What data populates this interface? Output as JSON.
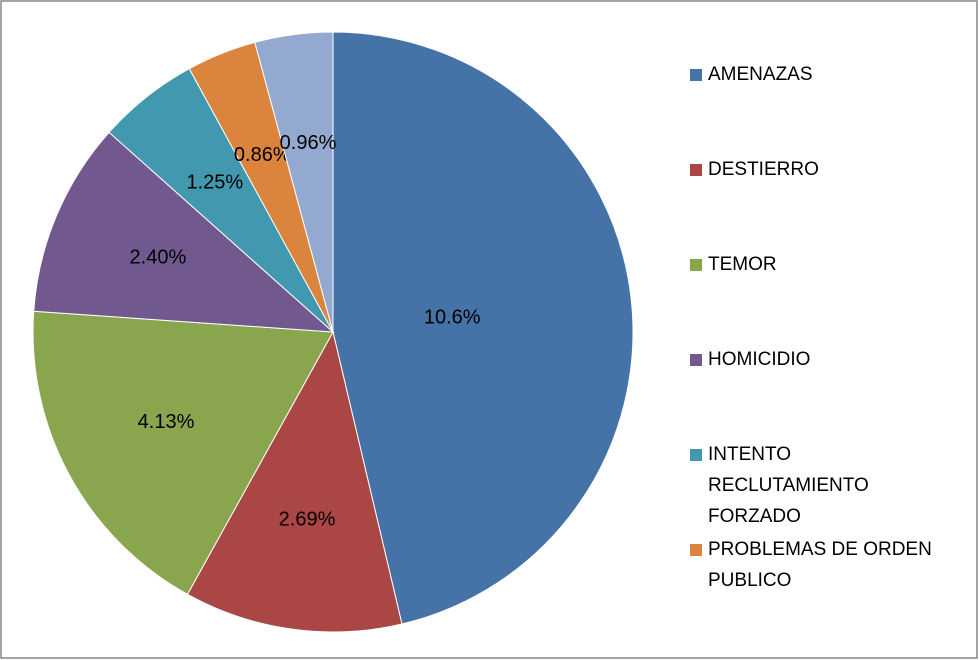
{
  "chart_data": {
    "type": "pie",
    "categories": [
      "AMENAZAS",
      "DESTIERRO",
      "TEMOR",
      "HOMICIDIO",
      "INTENTO RECLUTAMIENTO FORZADO",
      "PROBLEMAS DE ORDEN PUBLICO",
      null
    ],
    "values": [
      10.6,
      2.69,
      4.13,
      2.4,
      1.25,
      0.86,
      0.96
    ],
    "value_labels": [
      "10.6%",
      "2.69%",
      "4.13%",
      "2.40%",
      "1.25%",
      "0.86%",
      "0.96%"
    ],
    "colors": [
      "#4572A7",
      "#AA4643",
      "#89A54E",
      "#71588F",
      "#4198AF",
      "#DB843D",
      "#93A9CF"
    ],
    "legend": "right"
  }
}
